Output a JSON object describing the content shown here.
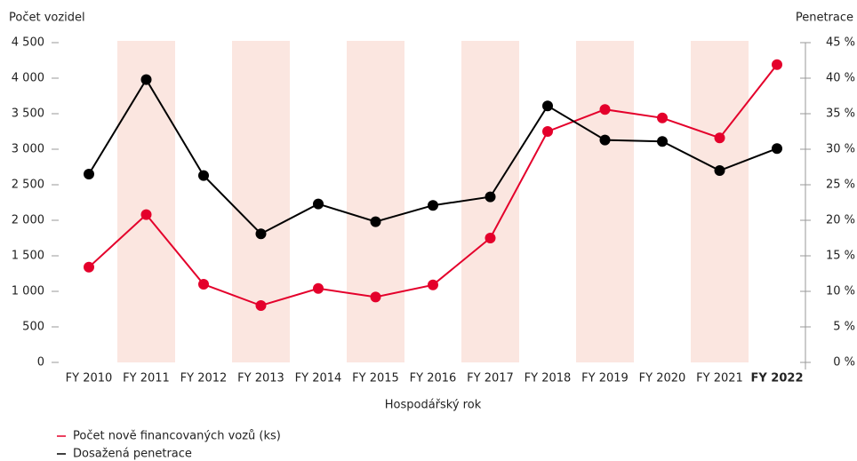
{
  "chart_data": {
    "type": "line",
    "y_axis_title": "Počet vozidel",
    "y2_axis_title": "Penetrace",
    "x_axis_title": "Hospodářský rok",
    "categories": [
      "FY 2010",
      "FY 2011",
      "FY 2012",
      "FY 2013",
      "FY 2014",
      "FY 2015",
      "FY 2016",
      "FY 2017",
      "FY 2018",
      "FY 2019",
      "FY 2020",
      "FY 2021",
      "FY 2022"
    ],
    "series": [
      {
        "name": "Počet nově financovaných vozů (ks)",
        "color": "#e4002b",
        "axis": "y",
        "values": [
          1340,
          2080,
          1100,
          800,
          1040,
          920,
          1090,
          1750,
          3250,
          3560,
          3440,
          3160,
          4190
        ]
      },
      {
        "name": "Dosažená penetrace",
        "color": "#000000",
        "axis": "y2",
        "values": [
          26.5,
          39.8,
          26.3,
          18.1,
          22.3,
          19.8,
          22.1,
          23.3,
          36.1,
          31.3,
          31.1,
          27.0,
          30.1
        ]
      }
    ],
    "ylim": [
      0,
      4500
    ],
    "yticks": [
      0,
      500,
      {
        "value": 1000,
        "label": "1 000"
      },
      {
        "value": 1500,
        "label": "1 500"
      },
      {
        "value": 2000,
        "label": "2 000"
      },
      {
        "value": 2500,
        "label": "2 500"
      },
      {
        "value": 3000,
        "label": "3 000"
      },
      {
        "value": 3500,
        "label": "3 500"
      },
      {
        "value": 4000,
        "label": "4 000"
      },
      {
        "value": 4500,
        "label": "4 500"
      }
    ],
    "y2lim": [
      0,
      45
    ],
    "y2ticks": [
      {
        "value": 0,
        "label": "0 %"
      },
      {
        "value": 5,
        "label": "5 %"
      },
      {
        "value": 10,
        "label": "10 %"
      },
      {
        "value": 15,
        "label": "15 %"
      },
      {
        "value": 20,
        "label": "20 %"
      },
      {
        "value": 25,
        "label": "25 %"
      },
      {
        "value": 30,
        "label": "30 %"
      },
      {
        "value": 35,
        "label": "35 %"
      },
      {
        "value": 40,
        "label": "40 %"
      },
      {
        "value": 45,
        "label": "45 %"
      }
    ],
    "legend": "bottom-left"
  }
}
